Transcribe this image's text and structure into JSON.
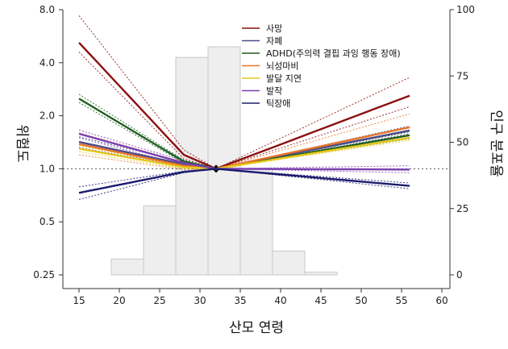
{
  "chart_data": {
    "type": "line",
    "xlabel": "산모 연령",
    "ylabel_left": "위험도",
    "ylabel_right": "인구 분포율",
    "x_ticks": [
      15,
      20,
      25,
      30,
      35,
      40,
      45,
      50,
      55,
      60
    ],
    "xlim": [
      13,
      61
    ],
    "y_left_scale": "log",
    "y_left_ticks": [
      0.25,
      0.5,
      1.0,
      2.0,
      4.0,
      8.0
    ],
    "y_left_tick_labels": [
      "0.25",
      "0.5",
      "1.0",
      "2.0",
      "4.0",
      "8.0"
    ],
    "y_left_lim": [
      0.25,
      8.0
    ],
    "y_right_ticks": [
      0,
      25,
      50,
      75,
      100
    ],
    "y_right_lim": [
      0,
      100
    ],
    "reference_line_y": 1.0,
    "reference_point": {
      "x": 32,
      "y": 1.0
    },
    "histogram": {
      "bin_edges": [
        11,
        15,
        19,
        23,
        27,
        31,
        35,
        39,
        43,
        47,
        51,
        55,
        59
      ],
      "values": [
        0,
        0,
        6,
        26,
        82,
        86,
        40,
        9,
        1,
        0,
        0,
        0
      ]
    },
    "series": [
      {
        "name": "사망",
        "color": "#8b1010",
        "x": [
          15,
          28,
          32,
          56
        ],
        "y": [
          5.2,
          1.2,
          1.0,
          2.6
        ],
        "ci_low": [
          4.6,
          1.14,
          1.0,
          2.25
        ],
        "ci_high": [
          7.4,
          1.28,
          1.0,
          3.3
        ]
      },
      {
        "name": "자폐",
        "color": "#4a4a8a",
        "x": [
          15,
          28,
          32,
          56
        ],
        "y": [
          1.42,
          1.06,
          1.0,
          1.65
        ],
        "ci_low": [
          1.32,
          1.03,
          1.0,
          1.58
        ],
        "ci_high": [
          1.52,
          1.09,
          1.0,
          1.75
        ]
      },
      {
        "name": "ADHD(주의력 결핍 과잉 행동 장애)",
        "color": "#1f5f1f",
        "x": [
          15,
          28,
          32,
          56
        ],
        "y": [
          2.5,
          1.1,
          1.0,
          1.55
        ],
        "ci_low": [
          2.38,
          1.08,
          1.0,
          1.48
        ],
        "ci_high": [
          2.65,
          1.12,
          1.0,
          1.62
        ]
      },
      {
        "name": "뇌성마비",
        "color": "#e8742a",
        "x": [
          15,
          28,
          32,
          56
        ],
        "y": [
          1.38,
          1.04,
          1.0,
          1.72
        ],
        "ci_low": [
          1.2,
          0.99,
          1.0,
          1.5
        ],
        "ci_high": [
          1.6,
          1.09,
          1.0,
          2.05
        ]
      },
      {
        "name": "발달 지연",
        "color": "#e6c81a",
        "x": [
          15,
          28,
          32,
          56
        ],
        "y": [
          1.3,
          1.02,
          1.0,
          1.5
        ],
        "ci_low": [
          1.25,
          1.0,
          1.0,
          1.45
        ],
        "ci_high": [
          1.35,
          1.04,
          1.0,
          1.56
        ]
      },
      {
        "name": "발작",
        "color": "#7a3fb0",
        "x": [
          15,
          28,
          32,
          56
        ],
        "y": [
          1.58,
          1.08,
          1.0,
          0.99
        ],
        "ci_low": [
          1.5,
          1.05,
          1.0,
          0.95
        ],
        "ci_high": [
          1.66,
          1.11,
          1.0,
          1.04
        ]
      },
      {
        "name": "틱장애",
        "color": "#1c1c6e",
        "x": [
          15,
          28,
          32,
          56
        ],
        "y": [
          0.73,
          0.96,
          1.0,
          0.8
        ],
        "ci_low": [
          0.67,
          0.95,
          1.0,
          0.77
        ],
        "ci_high": [
          0.79,
          0.97,
          1.0,
          0.83
        ]
      }
    ]
  }
}
